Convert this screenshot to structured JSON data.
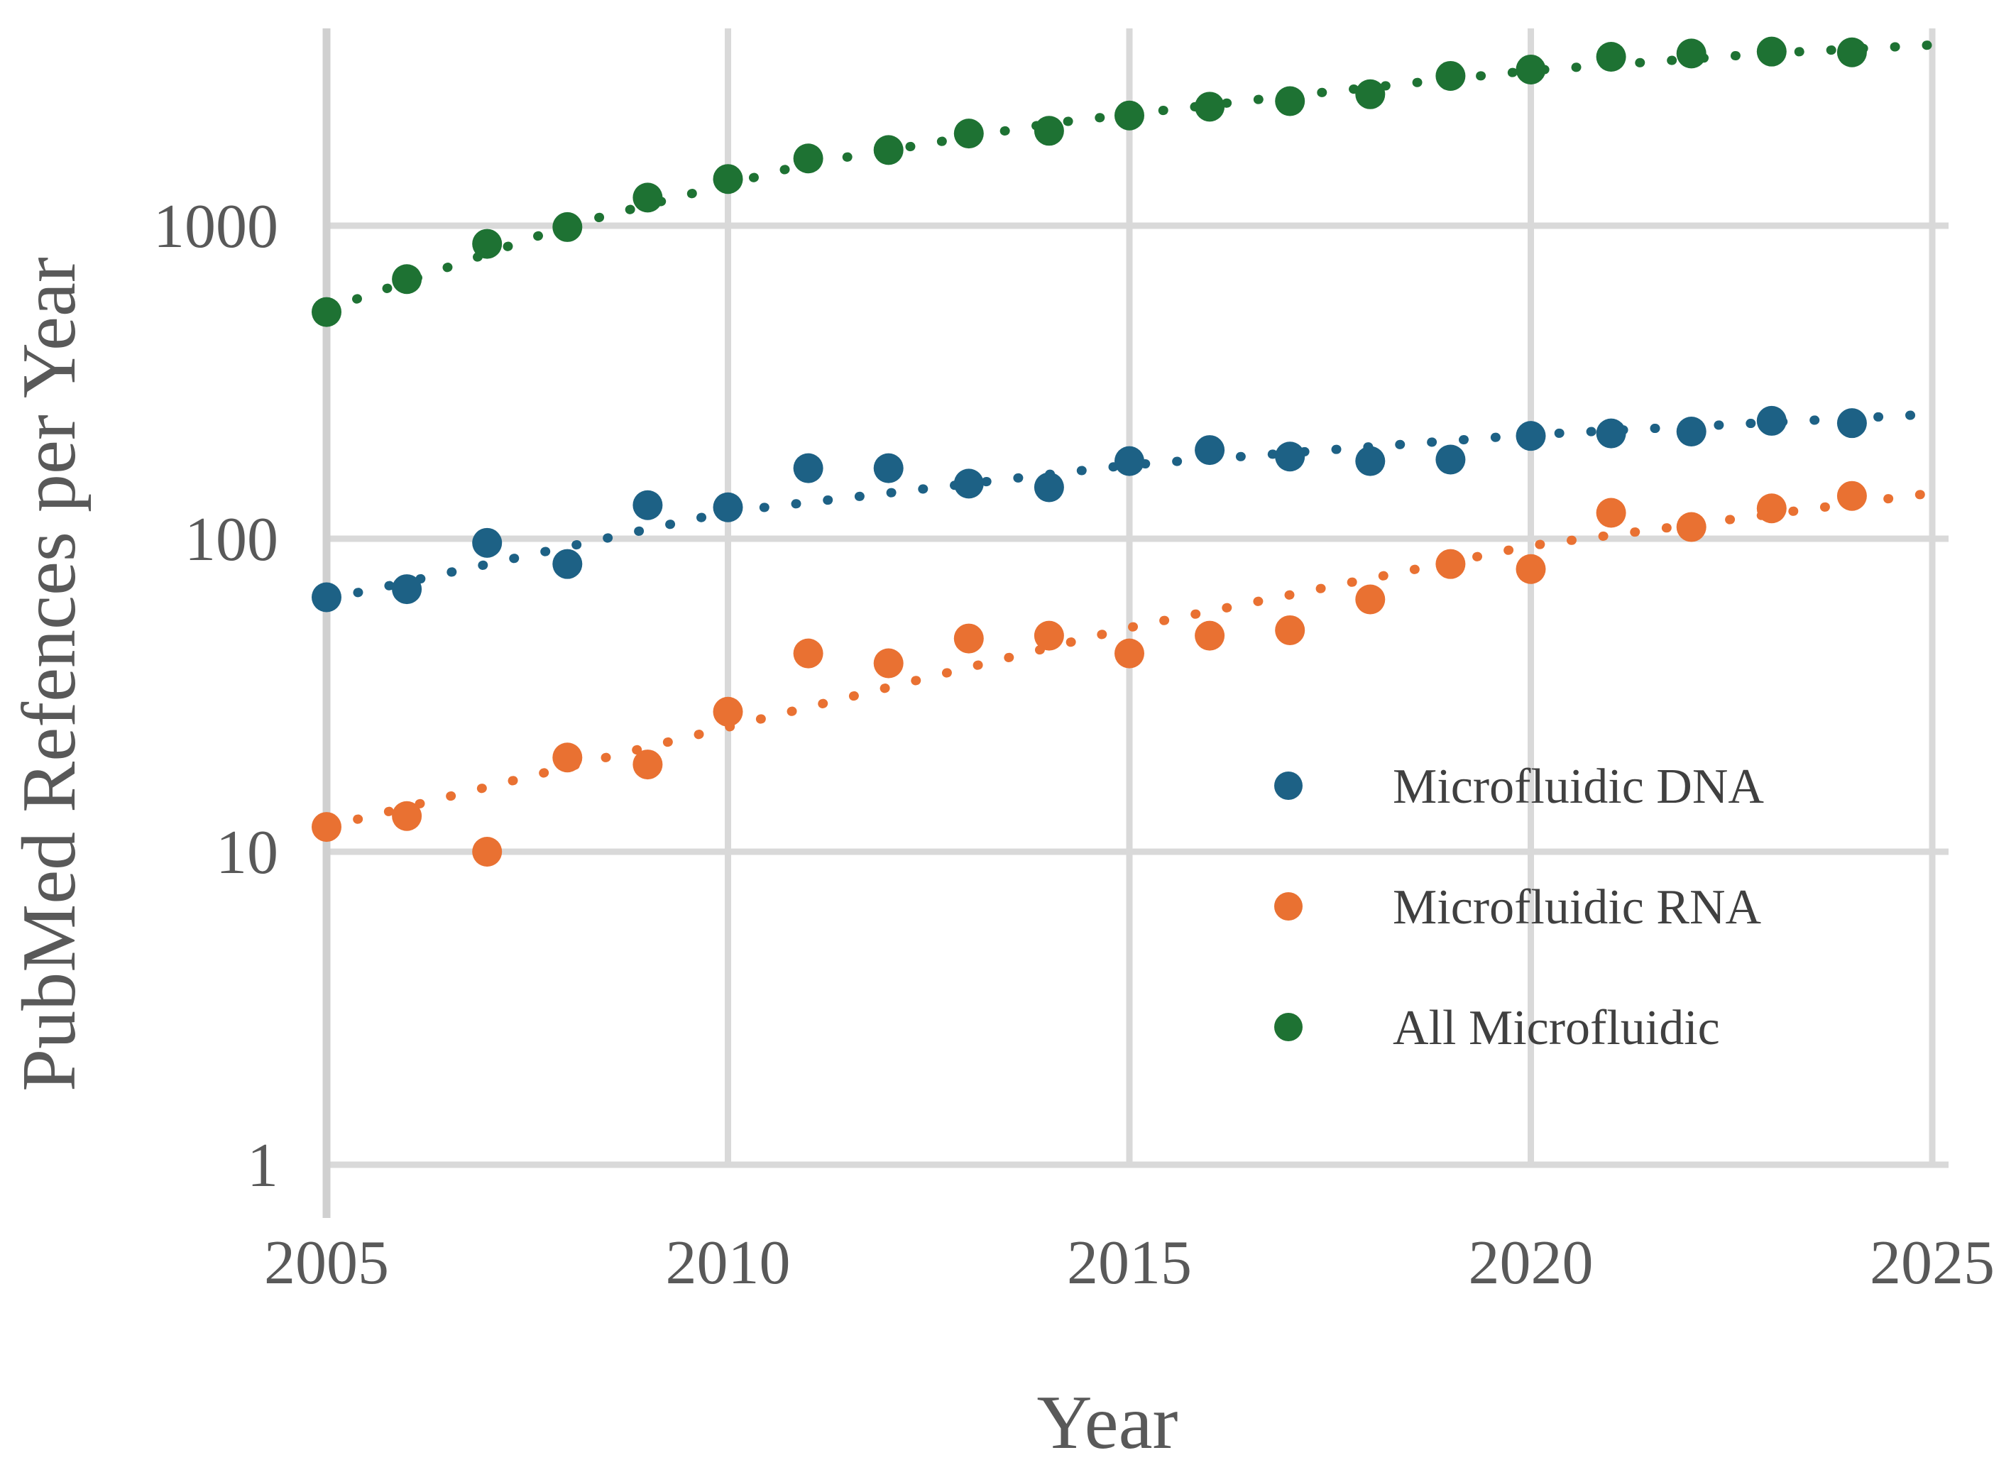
{
  "chart_data": {
    "type": "scatter",
    "title": "",
    "xlabel": "Year",
    "ylabel": "PubMed Refences per Year",
    "x_axis": {
      "range": [
        2005,
        2025
      ],
      "ticks": [
        2005,
        2010,
        2015,
        2020,
        2025
      ],
      "gridline_years": [
        2010,
        2015,
        2020,
        2025
      ],
      "scale": "linear"
    },
    "y_axis": {
      "range": [
        1,
        5000
      ],
      "ticks": [
        1,
        10,
        100,
        1000
      ],
      "tick_labels": [
        "1",
        "10",
        "100",
        "1000"
      ],
      "scale": "log10"
    },
    "grid": true,
    "marker_radius": 21,
    "series": [
      {
        "name": "Microfluidic DNA",
        "color": "#1d6185",
        "x": [
          2005,
          2006,
          2007,
          2008,
          2009,
          2010,
          2011,
          2012,
          2013,
          2014,
          2015,
          2016,
          2017,
          2018,
          2019,
          2020,
          2021,
          2022,
          2023,
          2024
        ],
        "values": [
          65,
          69,
          97,
          83,
          128,
          126,
          168,
          168,
          150,
          146,
          177,
          192,
          183,
          177,
          179,
          213,
          217,
          220,
          238,
          234
        ],
        "trend": {
          "style": "dotted",
          "anchors_x": [
            2005,
            2010,
            2015,
            2020,
            2025
          ],
          "anchors_y": [
            64,
            122,
            172,
            215,
            250
          ]
        }
      },
      {
        "name": "Microfluidic RNA",
        "color": "#e97132",
        "x": [
          2005,
          2006,
          2007,
          2008,
          2009,
          2010,
          2011,
          2012,
          2013,
          2014,
          2015,
          2016,
          2017,
          2018,
          2019,
          2020,
          2021,
          2022,
          2023,
          2024
        ],
        "values": [
          12,
          13,
          10,
          20,
          19,
          28,
          43,
          40,
          48,
          49,
          43,
          49,
          51,
          64,
          83,
          80,
          121,
          109,
          125,
          137
        ],
        "trend": {
          "style": "dotted",
          "anchors_x": [
            2005,
            2010,
            2015,
            2020,
            2025
          ],
          "anchors_y": [
            12,
            25,
            52,
            95,
            140
          ]
        }
      },
      {
        "name": "All Microfluidic",
        "color": "#1e7233",
        "x": [
          2005,
          2006,
          2007,
          2008,
          2009,
          2010,
          2011,
          2012,
          2013,
          2014,
          2015,
          2016,
          2017,
          2018,
          2019,
          2020,
          2021,
          2022,
          2023,
          2024
        ],
        "values": [
          530,
          675,
          875,
          990,
          1230,
          1410,
          1640,
          1745,
          1970,
          2010,
          2250,
          2400,
          2500,
          2630,
          3010,
          3155,
          3465,
          3550,
          3600,
          3580
        ],
        "trend": {
          "style": "dotted",
          "anchors_x": [
            2005,
            2008,
            2011,
            2014,
            2017,
            2020,
            2023,
            2025
          ],
          "anchors_y": [
            540,
            1000,
            1580,
            2120,
            2600,
            3130,
            3560,
            3780
          ]
        }
      }
    ],
    "legend": {
      "position": "inside-right",
      "items": [
        {
          "label": "Microfluidic DNA",
          "color": "#1d6185"
        },
        {
          "label": "Microfluidic RNA",
          "color": "#e97132"
        },
        {
          "label": "All Microfluidic",
          "color": "#1e7233"
        }
      ]
    },
    "colors": {
      "gridline": "#d9d9d9",
      "axis_line": "#d0d0d0",
      "tick_text": "#595959",
      "axis_title_text": "#595959",
      "legend_text": "#404040",
      "background": "#ffffff"
    }
  },
  "axis_titles": {
    "x": "Year",
    "y": "PubMed Refences per Year"
  },
  "legend": {
    "items": [
      {
        "label": "Microfluidic DNA"
      },
      {
        "label": "Microfluidic RNA"
      },
      {
        "label": "All Microfluidic"
      }
    ]
  }
}
